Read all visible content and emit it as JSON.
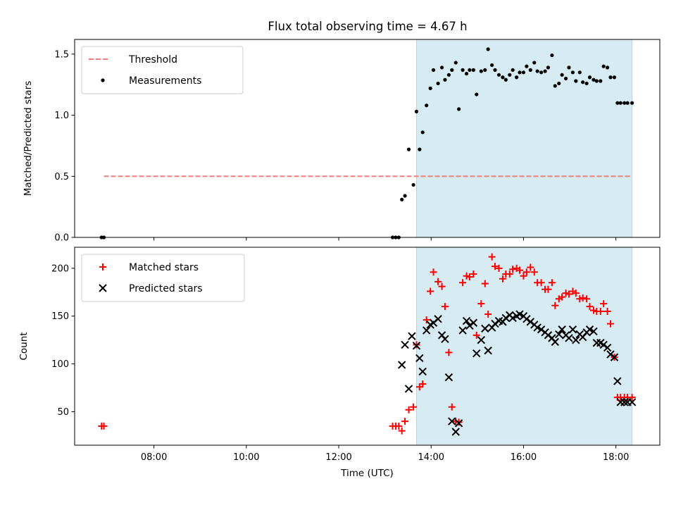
{
  "figure_title": "Flux total observing time = 4.67 h",
  "colors": {
    "shade": "#add8e6",
    "threshold": "#f08080",
    "measure": "#000000",
    "matched": "#ff0000",
    "predicted": "#000000"
  },
  "chart_data": [
    {
      "type": "scatter",
      "title": "Flux total observing time = 4.67 h",
      "ylabel": "Matched/Predicted stars",
      "xlabel": "",
      "xlim": [
        "06:17",
        "18:57"
      ],
      "ylim": [
        0,
        1.62
      ],
      "yticks": [
        0.0,
        0.5,
        1.0,
        1.5
      ],
      "ytick_labels": [
        "0.0",
        "0.5",
        "1.0",
        "1.5"
      ],
      "shaded_interval": [
        "13:41",
        "18:21"
      ],
      "legend": {
        "placement": "top-left",
        "entries": [
          "Threshold",
          "Measurements"
        ]
      },
      "threshold": {
        "name": "Threshold",
        "value": 0.5,
        "x": [
          "06:55",
          "18:21"
        ]
      },
      "series": [
        {
          "name": "Measurements",
          "x": [
            "06:52",
            "06:55",
            "13:10",
            "13:14",
            "13:18",
            "13:22",
            "13:26",
            "13:31",
            "13:37",
            "13:41",
            "13:45",
            "13:49",
            "13:54",
            "13:59",
            "14:03",
            "14:09",
            "14:14",
            "14:18",
            "14:23",
            "14:27",
            "14:32",
            "14:36",
            "14:41",
            "14:46",
            "14:50",
            "14:55",
            "14:59",
            "15:05",
            "15:10",
            "15:14",
            "15:19",
            "15:23",
            "15:28",
            "15:33",
            "15:37",
            "15:42",
            "15:46",
            "15:51",
            "15:55",
            "16:00",
            "16:04",
            "16:09",
            "16:14",
            "16:18",
            "16:23",
            "16:28",
            "16:32",
            "16:37",
            "16:41",
            "16:46",
            "16:50",
            "16:55",
            "16:59",
            "17:04",
            "17:08",
            "17:13",
            "17:17",
            "17:22",
            "17:26",
            "17:31",
            "17:35",
            "17:40",
            "17:44",
            "17:49",
            "17:53",
            "17:58",
            "18:02",
            "18:06",
            "18:11",
            "18:15",
            "18:21"
          ],
          "y": [
            0.0,
            0.0,
            0.0,
            0.0,
            0.0,
            0.31,
            0.34,
            0.72,
            0.43,
            1.03,
            0.72,
            0.86,
            1.08,
            1.22,
            1.37,
            1.26,
            1.39,
            1.29,
            1.33,
            1.37,
            1.43,
            1.05,
            1.37,
            1.34,
            1.37,
            1.37,
            1.17,
            1.36,
            1.37,
            1.54,
            1.41,
            1.37,
            1.33,
            1.31,
            1.29,
            1.33,
            1.37,
            1.31,
            1.35,
            1.35,
            1.4,
            1.37,
            1.43,
            1.36,
            1.35,
            1.36,
            1.39,
            1.49,
            1.24,
            1.26,
            1.33,
            1.3,
            1.39,
            1.35,
            1.28,
            1.35,
            1.27,
            1.26,
            1.31,
            1.29,
            1.28,
            1.28,
            1.4,
            1.39,
            1.31,
            1.31,
            1.1,
            1.1,
            1.1,
            1.1,
            1.1
          ]
        }
      ]
    },
    {
      "type": "scatter",
      "ylabel": "Count",
      "xlabel": "Time (UTC)",
      "xlim": [
        "06:17",
        "18:57"
      ],
      "ylim": [
        15,
        222
      ],
      "yticks": [
        50,
        100,
        150,
        200
      ],
      "ytick_labels": [
        "50",
        "100",
        "150",
        "200"
      ],
      "xticks": [
        "08:00",
        "10:00",
        "12:00",
        "14:00",
        "16:00",
        "18:00"
      ],
      "shaded_interval": [
        "13:41",
        "18:21"
      ],
      "legend": {
        "placement": "top-left",
        "entries": [
          "Matched stars",
          "Predicted stars"
        ]
      },
      "series": [
        {
          "name": "Matched stars",
          "x": [
            "06:52",
            "06:55",
            "13:10",
            "13:14",
            "13:18",
            "13:22",
            "13:26",
            "13:31",
            "13:37",
            "13:41",
            "13:45",
            "13:49",
            "13:54",
            "13:59",
            "14:03",
            "14:09",
            "14:14",
            "14:18",
            "14:23",
            "14:27",
            "14:32",
            "14:36",
            "14:41",
            "14:46",
            "14:50",
            "14:55",
            "14:59",
            "15:05",
            "15:10",
            "15:14",
            "15:19",
            "15:23",
            "15:28",
            "15:33",
            "15:37",
            "15:42",
            "15:46",
            "15:51",
            "15:55",
            "16:00",
            "16:04",
            "16:09",
            "16:14",
            "16:18",
            "16:23",
            "16:28",
            "16:32",
            "16:37",
            "16:41",
            "16:46",
            "16:50",
            "16:55",
            "16:59",
            "17:04",
            "17:08",
            "17:13",
            "17:17",
            "17:22",
            "17:26",
            "17:31",
            "17:35",
            "17:40",
            "17:44",
            "17:49",
            "17:53",
            "17:58",
            "18:02",
            "18:06",
            "18:11",
            "18:15",
            "18:21"
          ],
          "y": [
            35,
            35,
            35,
            35,
            35,
            30,
            40,
            52,
            55,
            120,
            76,
            79,
            146,
            176,
            196,
            186,
            181,
            160,
            112,
            55,
            40,
            39,
            185,
            192,
            191,
            194,
            130,
            163,
            184,
            152,
            212,
            202,
            200,
            189,
            194,
            194,
            199,
            200,
            198,
            192,
            196,
            201,
            196,
            185,
            185,
            178,
            178,
            185,
            161,
            168,
            170,
            174,
            173,
            176,
            174,
            168,
            169,
            168,
            160,
            156,
            155,
            155,
            163,
            155,
            142,
            107,
            65,
            65,
            65,
            65,
            65
          ]
        },
        {
          "name": "Predicted stars",
          "x": [
            "13:22",
            "13:26",
            "13:31",
            "13:35",
            "13:41",
            "13:45",
            "13:49",
            "13:54",
            "13:59",
            "14:03",
            "14:09",
            "14:14",
            "14:18",
            "14:23",
            "14:27",
            "14:32",
            "14:36",
            "14:41",
            "14:46",
            "14:50",
            "14:55",
            "14:59",
            "15:05",
            "15:10",
            "15:14",
            "15:19",
            "15:23",
            "15:28",
            "15:33",
            "15:37",
            "15:42",
            "15:46",
            "15:51",
            "15:55",
            "16:00",
            "16:04",
            "16:09",
            "16:14",
            "16:18",
            "16:23",
            "16:28",
            "16:32",
            "16:37",
            "16:41",
            "16:46",
            "16:50",
            "16:55",
            "16:59",
            "17:04",
            "17:08",
            "17:13",
            "17:17",
            "17:22",
            "17:26",
            "17:31",
            "17:35",
            "17:40",
            "17:44",
            "17:49",
            "17:53",
            "17:58",
            "18:02",
            "18:06",
            "18:11",
            "18:15",
            "18:21"
          ],
          "y": [
            99,
            120,
            74,
            129,
            119,
            106,
            92,
            135,
            141,
            143,
            147,
            130,
            126,
            86,
            40,
            29,
            38,
            135,
            145,
            140,
            143,
            111,
            125,
            137,
            114,
            138,
            142,
            145,
            144,
            148,
            151,
            148,
            150,
            152,
            150,
            147,
            144,
            141,
            138,
            136,
            133,
            130,
            127,
            123,
            131,
            136,
            130,
            127,
            136,
            125,
            131,
            128,
            133,
            136,
            134,
            122,
            122,
            120,
            117,
            110,
            107,
            82,
            60,
            60,
            60,
            60
          ]
        }
      ]
    }
  ]
}
